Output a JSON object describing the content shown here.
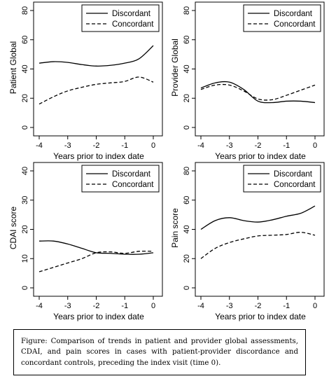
{
  "chart_data": [
    {
      "type": "line",
      "title": "",
      "xlabel": "Years prior to index date",
      "ylabel": "Patient Global",
      "xlim": [
        -4,
        0
      ],
      "ylim": [
        0,
        80
      ],
      "xticks": [
        "-4",
        "-3",
        "-2",
        "-1",
        "0"
      ],
      "yticks": [
        "0",
        "20",
        "40",
        "60",
        "80"
      ],
      "legend": "top-right",
      "series": [
        {
          "name": "Discordant",
          "style": "solid",
          "x": [
            -4,
            -3.5,
            -3,
            -2.5,
            -2,
            -1.5,
            -1,
            -0.5,
            0
          ],
          "y": [
            44,
            45,
            44.5,
            43,
            42,
            42.5,
            44,
            47,
            56
          ]
        },
        {
          "name": "Concordant",
          "style": "dashed",
          "x": [
            -4,
            -3.5,
            -3,
            -2.5,
            -2,
            -1.5,
            -1,
            -0.5,
            0
          ],
          "y": [
            16,
            21,
            25,
            27.5,
            29.5,
            30.5,
            31.5,
            34.5,
            31
          ]
        }
      ]
    },
    {
      "type": "line",
      "title": "",
      "xlabel": "Years prior to index date",
      "ylabel": "Provider Global",
      "xlim": [
        -4,
        0
      ],
      "ylim": [
        0,
        80
      ],
      "xticks": [
        "-4",
        "-3",
        "-2",
        "-1",
        "0"
      ],
      "yticks": [
        "0",
        "20",
        "40",
        "60",
        "80"
      ],
      "legend": "top-right",
      "series": [
        {
          "name": "Discordant",
          "style": "solid",
          "x": [
            -4,
            -3.5,
            -3,
            -2.5,
            -2,
            -1.5,
            -1,
            -0.5,
            0
          ],
          "y": [
            27,
            30.5,
            31,
            26,
            18,
            17,
            18,
            18,
            17
          ]
        },
        {
          "name": "Concordant",
          "style": "dashed",
          "x": [
            -4,
            -3.5,
            -3,
            -2.5,
            -2,
            -1.5,
            -1,
            -0.5,
            0
          ],
          "y": [
            26,
            29,
            29,
            25,
            19.5,
            19,
            22,
            25.5,
            29
          ]
        }
      ]
    },
    {
      "type": "line",
      "title": "",
      "xlabel": "Years prior to index date",
      "ylabel": "CDAI score",
      "xlim": [
        -4,
        0
      ],
      "ylim": [
        0,
        40
      ],
      "xticks": [
        "-4",
        "-3",
        "-2",
        "-1",
        "0"
      ],
      "yticks": [
        "0",
        "10",
        "20",
        "30",
        "40"
      ],
      "legend": "top-right",
      "series": [
        {
          "name": "Discordant",
          "style": "solid",
          "x": [
            -4,
            -3.5,
            -3,
            -2.5,
            -2,
            -1.5,
            -1,
            -0.5,
            0
          ],
          "y": [
            16,
            16,
            15,
            13.5,
            12,
            11.8,
            11.5,
            11.5,
            12
          ]
        },
        {
          "name": "Concordant",
          "style": "dashed",
          "x": [
            -4,
            -3.5,
            -3,
            -2.5,
            -2,
            -1.5,
            -1,
            -0.5,
            0
          ],
          "y": [
            5.5,
            7,
            8.5,
            10,
            12,
            12.3,
            11.8,
            12.5,
            12.5
          ]
        }
      ]
    },
    {
      "type": "line",
      "title": "",
      "xlabel": "Years prior to index date",
      "ylabel": "Pain score",
      "xlim": [
        -4,
        0
      ],
      "ylim": [
        0,
        80
      ],
      "xticks": [
        "-4",
        "-3",
        "-2",
        "-1",
        "0"
      ],
      "yticks": [
        "0",
        "20",
        "40",
        "60",
        "80"
      ],
      "legend": "top-right",
      "series": [
        {
          "name": "Discordant",
          "style": "solid",
          "x": [
            -4,
            -3.5,
            -3,
            -2.5,
            -2,
            -1.5,
            -1,
            -0.5,
            0
          ],
          "y": [
            40,
            46,
            48,
            46,
            45,
            46.5,
            49,
            51,
            56
          ]
        },
        {
          "name": "Concordant",
          "style": "dashed",
          "x": [
            -4,
            -3.5,
            -3,
            -2.5,
            -2,
            -1.5,
            -1,
            -0.5,
            0
          ],
          "y": [
            20,
            27,
            31,
            33.5,
            35.5,
            36,
            36.5,
            38,
            36
          ]
        }
      ]
    }
  ],
  "caption": "Figure: Comparison of trends in patient and provider global assessments, CDAI, and pain scores in cases with patient-provider discordance and concordant controls, preceding the index visit (time 0)."
}
